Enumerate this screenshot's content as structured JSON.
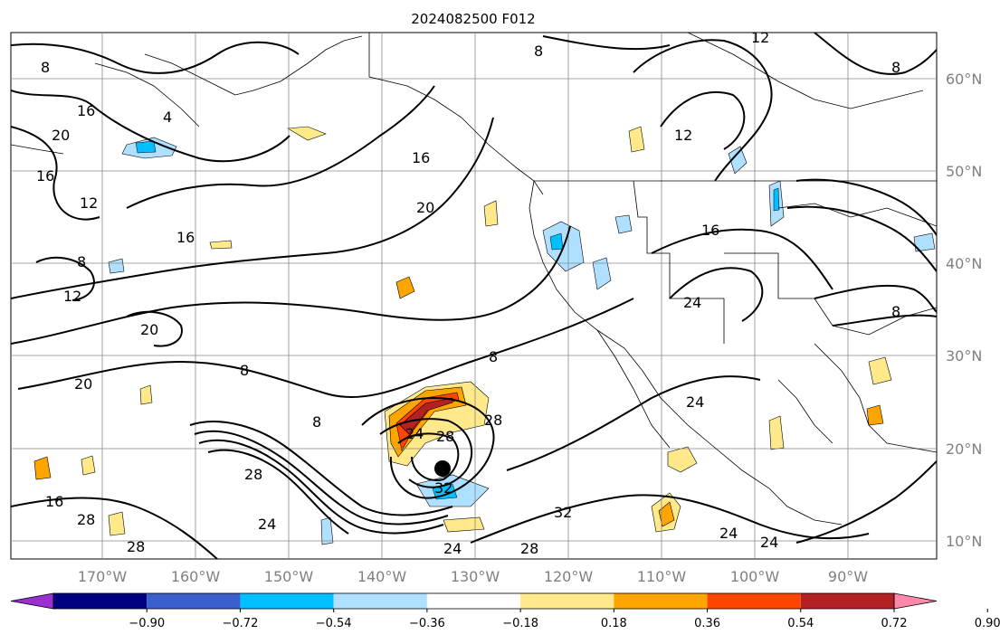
{
  "title": "2024082500 F012",
  "lon_labels": [
    "170°W",
    "160°W",
    "150°W",
    "140°W",
    "130°W",
    "120°W",
    "110°W",
    "100°W",
    "90°W"
  ],
  "lat_labels": [
    "60°N",
    "50°N",
    "40°N",
    "30°N",
    "20°N",
    "10°N"
  ],
  "contour_labels": [
    "12",
    "8",
    "8",
    "16",
    "4",
    "20",
    "12",
    "8",
    "16",
    "20",
    "8",
    "12",
    "20",
    "16",
    "12",
    "8",
    "16",
    "24",
    "8",
    "8",
    "24",
    "28",
    "32",
    "28",
    "24",
    "28",
    "16",
    "28",
    "32",
    "24",
    "24",
    "28",
    "28",
    "8",
    "24",
    "16",
    "20",
    "24"
  ],
  "colorbar": {
    "ticks": [
      "−0.90",
      "−0.72",
      "−0.54",
      "−0.36",
      "−0.18",
      "0.18",
      "0.36",
      "0.54",
      "0.72",
      "0.90"
    ],
    "colors": [
      "#9b30d0",
      "#000080",
      "#3a5fcd",
      "#00bfff",
      "#b0e0ff",
      "#ffffff",
      "#ffe98a",
      "#ffa500",
      "#ff4500",
      "#b22222",
      "#ff88aa"
    ]
  }
}
